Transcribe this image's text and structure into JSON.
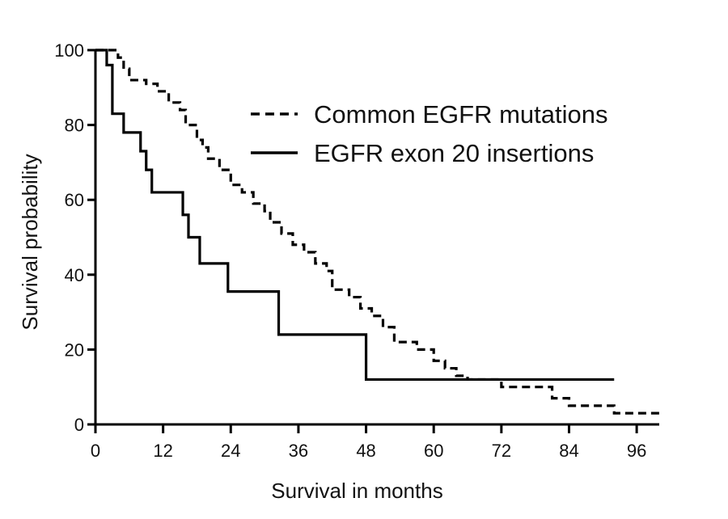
{
  "chart_data": {
    "type": "line",
    "title": "",
    "xlabel": "Survival in months",
    "ylabel": "Survival probability",
    "xlim": [
      0,
      100
    ],
    "ylim": [
      0,
      100
    ],
    "xticks": [
      0,
      12,
      24,
      36,
      48,
      60,
      72,
      84,
      96
    ],
    "yticks": [
      0,
      20,
      40,
      60,
      80,
      100
    ],
    "grid": false,
    "legend": "top-right",
    "series": [
      {
        "name": "Common EGFR mutations",
        "style": "dashed",
        "color": "#000000",
        "x": [
          0,
          4,
          5,
          6,
          9,
          11,
          13,
          15,
          16,
          18,
          19,
          20,
          22,
          24,
          26,
          28,
          30,
          31,
          33,
          35,
          37,
          39,
          41,
          42,
          45,
          47,
          49,
          51,
          53,
          57,
          60,
          62,
          64,
          66,
          72,
          81,
          84,
          92,
          100
        ],
        "y": [
          100,
          98,
          95,
          92,
          91,
          89,
          86,
          84,
          80,
          76,
          74,
          71,
          68,
          64,
          62,
          59,
          57,
          54,
          51,
          48,
          46,
          43,
          41,
          36,
          34,
          31,
          29,
          26,
          22,
          20,
          17,
          15,
          13,
          12,
          10,
          7,
          5,
          3,
          3
        ]
      },
      {
        "name": "EGFR exon 20 insertions",
        "style": "solid",
        "color": "#000000",
        "x": [
          0,
          2,
          3,
          5,
          8,
          9,
          10,
          15.5,
          16.5,
          18.5,
          23.5,
          32.5,
          48,
          92
        ],
        "y": [
          100,
          96,
          83,
          78,
          73,
          68,
          62,
          56,
          50,
          43,
          35.5,
          24,
          12,
          12
        ]
      }
    ]
  }
}
